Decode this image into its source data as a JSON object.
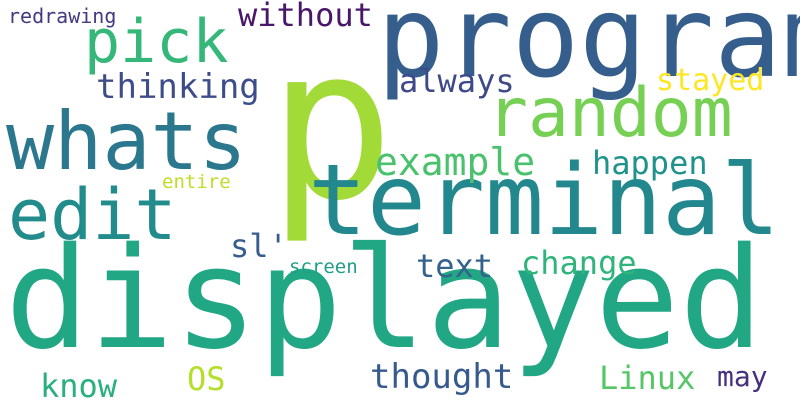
{
  "word_cloud": {
    "words": [
      {
        "text": "p",
        "color": "#a2da37"
      },
      {
        "text": "displayed",
        "color": "#22a785"
      },
      {
        "text": "program",
        "color": "#355e8d"
      },
      {
        "text": "terminal",
        "color": "#23888e"
      },
      {
        "text": "whats",
        "color": "#2b788e"
      },
      {
        "text": "edit",
        "color": "#228c8d"
      },
      {
        "text": "random",
        "color": "#75d054"
      },
      {
        "text": "pick",
        "color": "#35b779"
      },
      {
        "text": "example",
        "color": "#4ac16d"
      },
      {
        "text": "thinking",
        "color": "#3d4d8a"
      },
      {
        "text": "always",
        "color": "#3e4989"
      },
      {
        "text": "without",
        "color": "#481769"
      },
      {
        "text": "happen",
        "color": "#20928c"
      },
      {
        "text": "stayed",
        "color": "#fde725"
      },
      {
        "text": "change",
        "color": "#2fb47c"
      },
      {
        "text": "text",
        "color": "#33628d"
      },
      {
        "text": "thought",
        "color": "#375a8c"
      },
      {
        "text": "Linux",
        "color": "#56c667"
      },
      {
        "text": "may",
        "color": "#46307e"
      },
      {
        "text": "know",
        "color": "#2ab07f"
      },
      {
        "text": "OS",
        "color": "#b5de2b"
      },
      {
        "text": "sl'",
        "color": "#365d8d"
      },
      {
        "text": "screen",
        "color": "#1f9e89"
      },
      {
        "text": "entire",
        "color": "#bddf26"
      },
      {
        "text": "redrawing",
        "color": "#443a83"
      }
    ]
  }
}
